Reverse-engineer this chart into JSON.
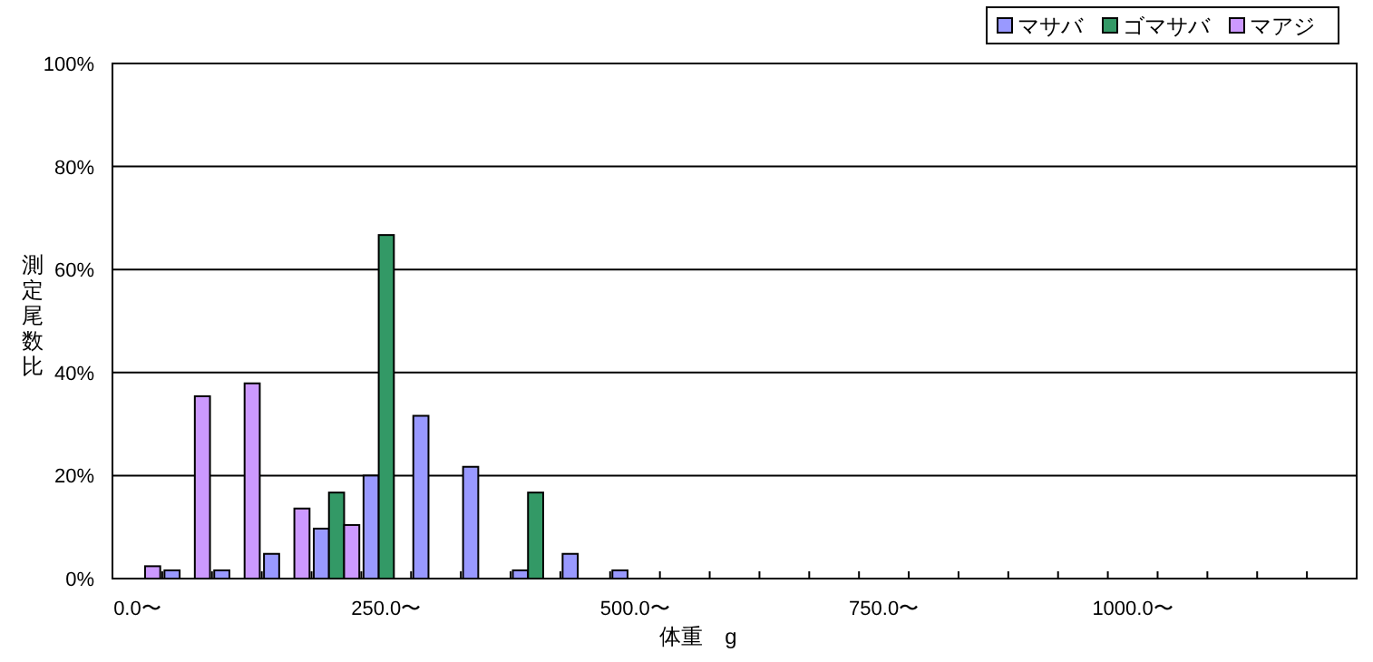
{
  "chart_data": {
    "type": "bar",
    "xlabel": "体重　g",
    "ylabel": "測定尾数比",
    "categories": [
      "0.0〜",
      null,
      null,
      null,
      null,
      "250.0〜",
      null,
      null,
      null,
      null,
      "500.0〜",
      null,
      null,
      null,
      null,
      "750.0〜",
      null,
      null,
      null,
      null,
      "1000.0〜",
      null,
      null,
      null,
      null
    ],
    "series": [
      {
        "name": "マサバ",
        "color": "#9999ff",
        "values": [
          0,
          1.6,
          1.6,
          4.8,
          9.7,
          20,
          31.6,
          21.7,
          1.6,
          4.8,
          1.6,
          0,
          0,
          0,
          0,
          0,
          0,
          0,
          0,
          0,
          0,
          0,
          0,
          0,
          0
        ]
      },
      {
        "name": "ゴマサバ",
        "color": "#339966",
        "values": [
          0,
          0,
          0,
          0,
          16.7,
          66.7,
          0,
          0,
          16.7,
          0,
          0,
          0,
          0,
          0,
          0,
          0,
          0,
          0,
          0,
          0,
          0,
          0,
          0,
          0,
          0
        ]
      },
      {
        "name": "マアジ",
        "color": "#cc99ff",
        "values": [
          2.4,
          35.4,
          37.9,
          13.6,
          10.4,
          0,
          0,
          0,
          0,
          0,
          0,
          0,
          0,
          0,
          0,
          0,
          0,
          0,
          0,
          0,
          0,
          0,
          0,
          0,
          0
        ]
      }
    ],
    "ylim": [
      0,
      100
    ],
    "yticks": [
      {
        "value": 0,
        "label": "0%"
      },
      {
        "value": 20,
        "label": "20%"
      },
      {
        "value": 40,
        "label": "40%"
      },
      {
        "value": 60,
        "label": "60%"
      },
      {
        "value": 80,
        "label": "80%"
      },
      {
        "value": 100,
        "label": "100%"
      }
    ],
    "grid": "y",
    "legend": "top right"
  }
}
